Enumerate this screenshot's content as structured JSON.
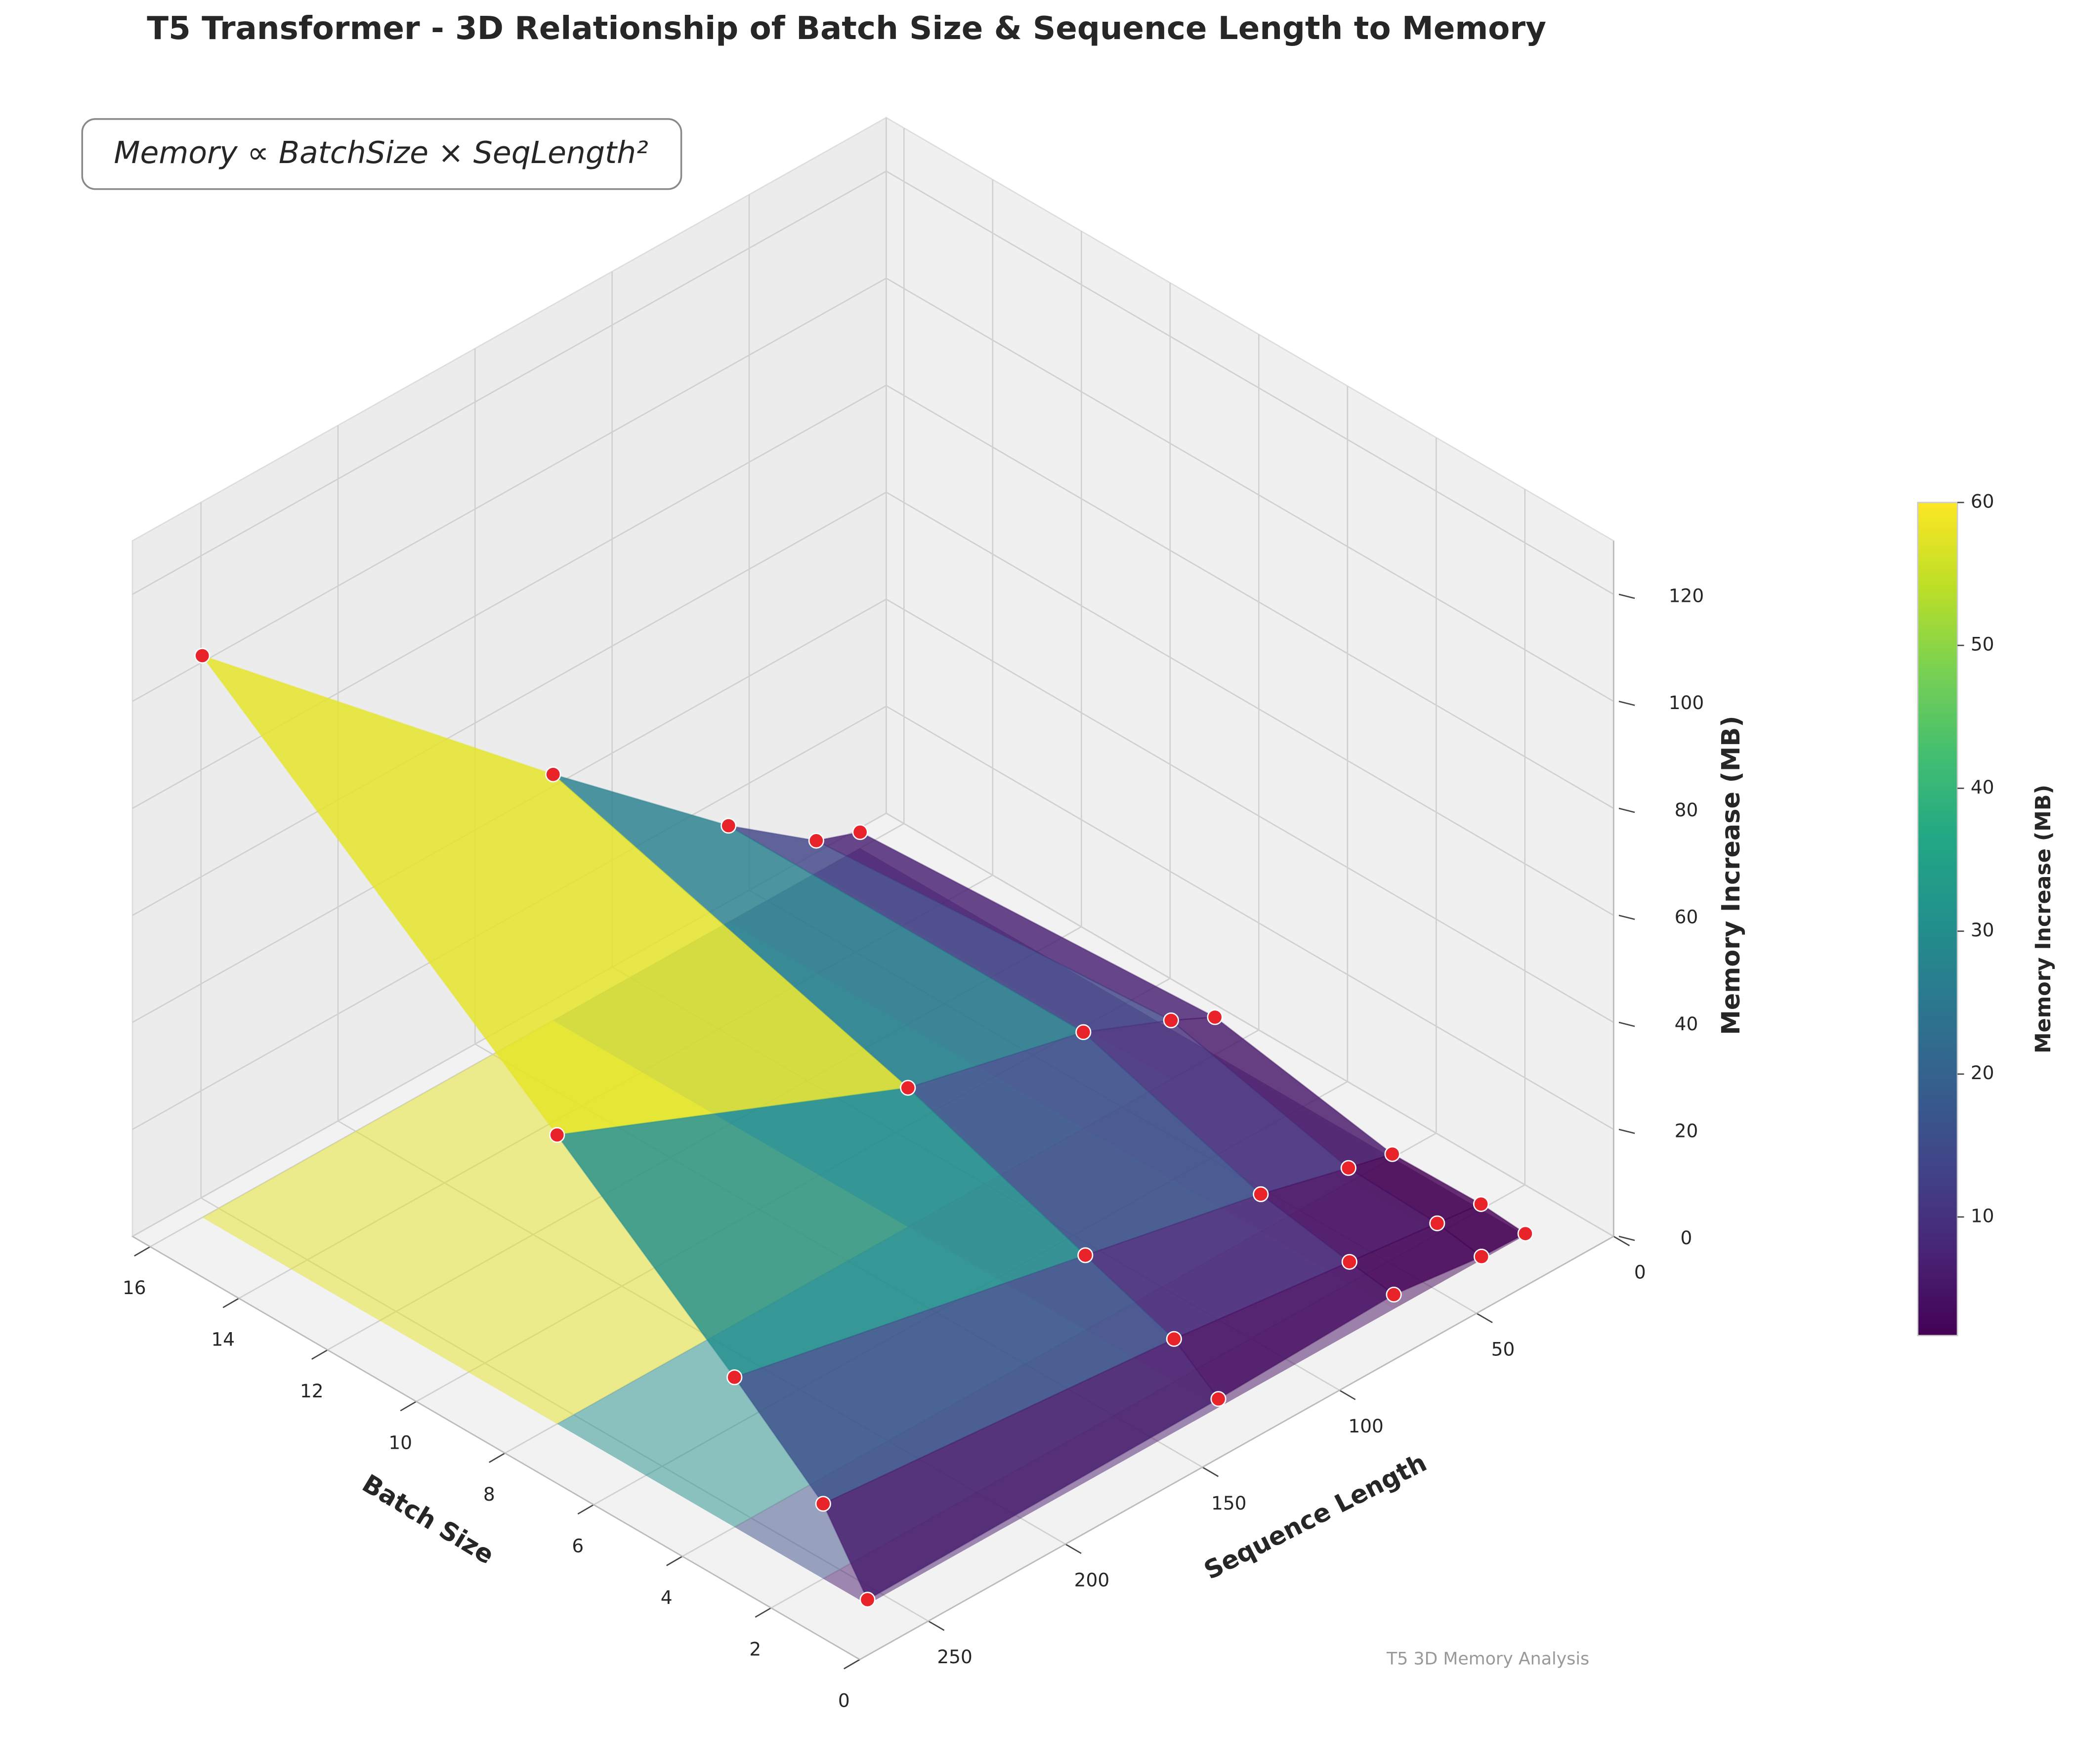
{
  "chart_data": {
    "type": "surface3d",
    "title": "T5 Transformer - 3D Relationship of Batch Size & Sequence Length to Memory",
    "annotation": "Memory ∝ BatchSize × SeqLength²",
    "watermark": "T5 3D Memory Analysis",
    "x_label": "Batch Size",
    "y_label": "Sequence Length",
    "z_label": "Memory Increase (MB)",
    "colorbar_label": "Memory Increase (MB)",
    "x": [
      1,
      2,
      4,
      8,
      16
    ],
    "y": [
      16,
      32,
      64,
      128,
      256
    ],
    "z": [
      [
        0.3,
        0.6,
        2.7,
        1.6,
        0.9
      ],
      [
        1,
        2,
        4,
        8,
        14
      ],
      [
        0.7,
        2.7,
        7,
        14,
        28
      ],
      [
        7,
        11,
        18,
        26,
        54
      ],
      [
        3,
        6,
        18,
        46,
        105
      ]
    ],
    "xlim": [
      0,
      16.4
    ],
    "xticks": [
      0,
      2,
      4,
      6,
      8,
      10,
      12,
      14,
      16
    ],
    "ylim": [
      0,
      275
    ],
    "yticks": [
      0,
      50,
      100,
      150,
      200,
      250
    ],
    "zlim": [
      0,
      130
    ],
    "zticks": [
      0,
      20,
      40,
      60,
      80,
      100,
      120
    ],
    "colormap": "viridis",
    "colorbar_lim": [
      1.7,
      60
    ],
    "colorbar_ticks": [
      10,
      20,
      30,
      40,
      50,
      60
    ],
    "point_color": "#e8232a"
  }
}
